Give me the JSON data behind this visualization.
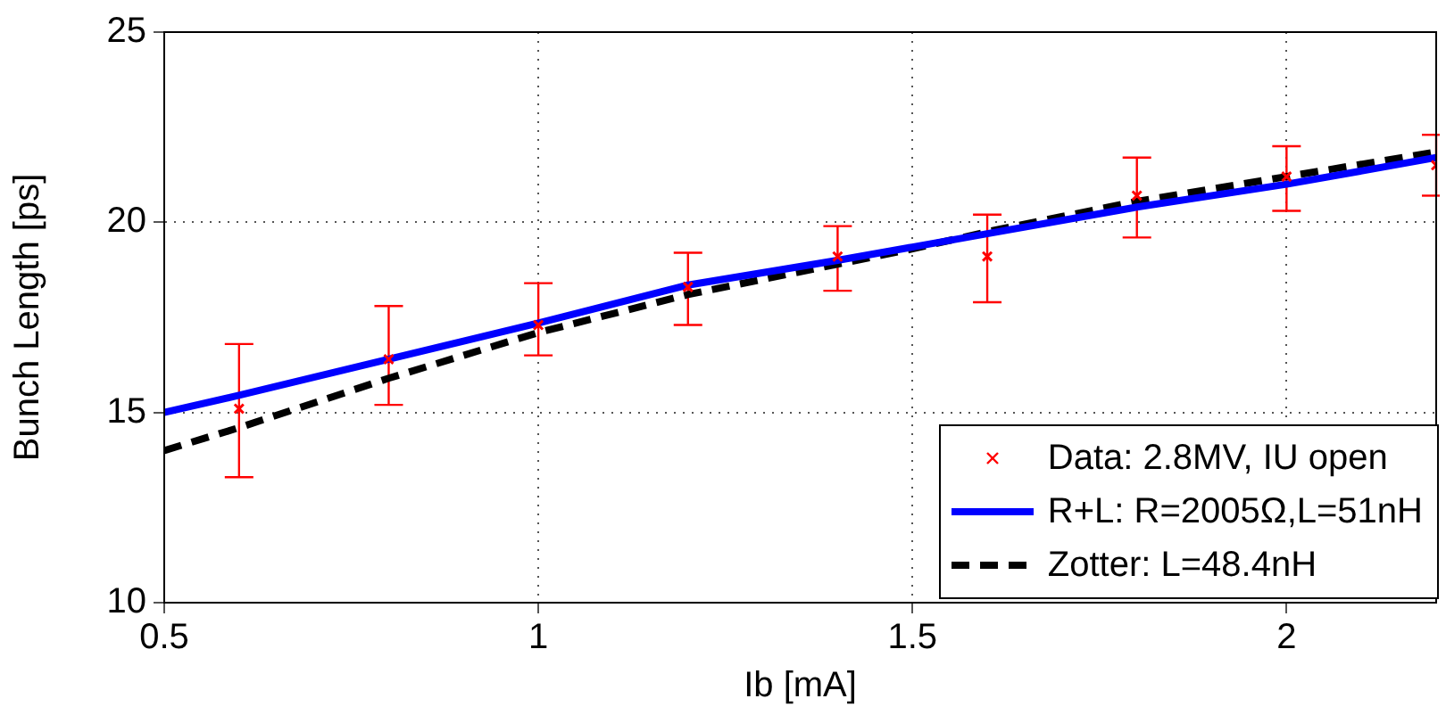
{
  "chart_data": {
    "type": "scatter",
    "xlabel": "Ib [mA]",
    "ylabel": "Bunch Length [ps]",
    "xlim": [
      0.5,
      2.2
    ],
    "xticks": [
      0.5,
      1,
      1.5,
      2
    ],
    "ylim": [
      10,
      25
    ],
    "yticks": [
      10,
      15,
      20,
      25
    ],
    "grid": true,
    "legend": "bottom right",
    "series": [
      {
        "name": "Data: 2.8MV, IU open",
        "type": "scatter",
        "marker": "cross",
        "color": "#ff0000",
        "x": [
          0.6,
          0.8,
          1.0,
          1.2,
          1.4,
          1.6,
          1.8,
          2.0,
          2.2
        ],
        "values": [
          15.1,
          16.4,
          17.3,
          18.3,
          19.1,
          19.1,
          20.7,
          21.2,
          21.5
        ],
        "errors": [
          [
            13.3,
            16.8
          ],
          [
            15.2,
            17.8
          ],
          [
            16.5,
            18.4
          ],
          [
            17.3,
            19.2
          ],
          [
            18.2,
            19.9
          ],
          [
            17.9,
            20.2
          ],
          [
            19.6,
            21.7
          ],
          [
            20.3,
            22.0
          ],
          [
            20.7,
            22.3
          ]
        ]
      },
      {
        "name": "R+L: R=2005Ω,L=51nH",
        "type": "line",
        "marker": "none",
        "line_style": "solid",
        "color": "#0000ff",
        "x": [
          0.5,
          0.6,
          0.8,
          1.0,
          1.2,
          1.4,
          1.5,
          1.6,
          1.8,
          2.0,
          2.2
        ],
        "values": [
          15.0,
          15.45,
          16.4,
          17.35,
          18.35,
          19.0,
          19.35,
          19.7,
          20.4,
          21.0,
          21.7
        ]
      },
      {
        "name": "Zotter: L=48.4nH",
        "type": "line",
        "marker": "none",
        "line_style": "dashed",
        "color": "#000000",
        "x": [
          0.5,
          0.6,
          0.8,
          1.0,
          1.2,
          1.4,
          1.5,
          1.6,
          1.8,
          2.0,
          2.2
        ],
        "values": [
          14.0,
          14.6,
          15.9,
          17.1,
          18.1,
          18.9,
          19.3,
          19.75,
          20.55,
          21.2,
          21.85
        ]
      }
    ]
  }
}
